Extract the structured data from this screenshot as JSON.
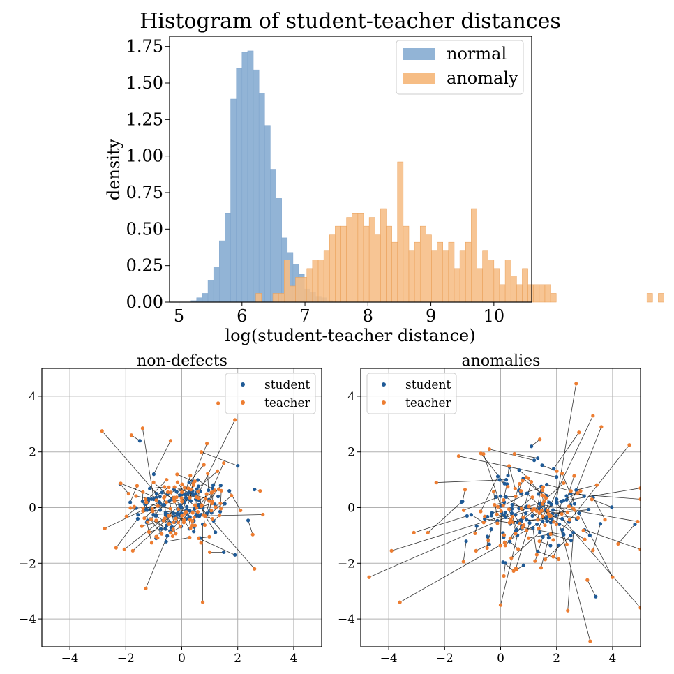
{
  "chart_data": [
    {
      "type": "histogram",
      "title": "Histogram of student-teacher distances",
      "xlabel": "log(student-teacher distance)",
      "ylabel": "density",
      "xlim": [
        4.85,
        10.6
      ],
      "ylim": [
        0,
        1.82
      ],
      "xticks": [
        "5",
        "6",
        "7",
        "8",
        "9",
        "10"
      ],
      "yticks": [
        "0.00",
        "0.25",
        "0.50",
        "0.75",
        "1.00",
        "1.25",
        "1.50",
        "1.75"
      ],
      "legend_position": "top-right",
      "series": [
        {
          "name": "normal",
          "color": "#92b4d6",
          "edge": "#7ea4cc",
          "x_start": 5.1,
          "bin_width": 0.09,
          "values": [
            0.0,
            0.01,
            0.03,
            0.06,
            0.15,
            0.24,
            0.42,
            0.61,
            1.39,
            1.6,
            1.71,
            1.72,
            1.59,
            1.43,
            1.21,
            0.91,
            0.71,
            0.44,
            0.34,
            0.26,
            0.19,
            0.09,
            0.07,
            0.04,
            0.03,
            0.01
          ]
        },
        {
          "name": "anomaly",
          "color": "#f6bd85",
          "edge": "#e99e55",
          "x_start": 6.22,
          "bin_width": 0.09,
          "values": [
            0.06,
            0.0,
            0.0,
            0.06,
            0.06,
            0.29,
            0.11,
            0.17,
            0.17,
            0.23,
            0.29,
            0.29,
            0.35,
            0.46,
            0.52,
            0.52,
            0.58,
            0.61,
            0.61,
            0.52,
            0.58,
            0.46,
            0.64,
            0.52,
            0.41,
            0.96,
            0.52,
            0.35,
            0.41,
            0.52,
            0.46,
            0.35,
            0.41,
            0.35,
            0.41,
            0.23,
            0.35,
            0.41,
            0.64,
            0.23,
            0.35,
            0.29,
            0.23,
            0.12,
            0.29,
            0.18,
            0.12,
            0.23,
            0.12,
            0.12,
            0.12,
            0.12,
            0.06,
            0.0,
            0.0,
            0.0,
            0.0,
            0.0,
            0.0,
            0.0,
            0.0,
            0.0,
            0.0,
            0.0,
            0.0,
            0.0,
            0.0,
            0.0,
            0.0,
            0.06,
            0.0,
            0.06
          ]
        }
      ]
    },
    {
      "type": "scatter",
      "title": "non-defects",
      "xlim": [
        -5,
        5
      ],
      "ylim": [
        -5,
        5
      ],
      "xticks": [
        "−4",
        "−2",
        "0",
        "2",
        "4"
      ],
      "yticks": [
        "4",
        "2",
        "0",
        "−2",
        "−4"
      ],
      "grid": true,
      "legend_position": "top-right",
      "series": [
        {
          "name": "student",
          "color": "#1f5a96"
        },
        {
          "name": "teacher",
          "color": "#ed7d31"
        }
      ],
      "pairs": [
        {
          "student": [
            1.3,
            0.4
          ],
          "teacher": [
            1.3,
            3.75
          ]
        },
        {
          "student": [
            0.5,
            0.3
          ],
          "teacher": [
            1.9,
            3.15
          ]
        },
        {
          "student": [
            -1.5,
            2.4
          ],
          "teacher": [
            -1.8,
            2.6
          ]
        },
        {
          "student": [
            -0.9,
            0.5
          ],
          "teacher": [
            -2.85,
            2.75
          ]
        },
        {
          "student": [
            -1.0,
            0.3
          ],
          "teacher": [
            -1.4,
            2.85
          ]
        },
        {
          "student": [
            0.2,
            0.5
          ],
          "teacher": [
            0.9,
            2.3
          ]
        },
        {
          "student": [
            2.0,
            1.5
          ],
          "teacher": [
            0.7,
            2.0
          ]
        },
        {
          "student": [
            0.6,
            0.1
          ],
          "teacher": [
            2.6,
            -2.2
          ]
        },
        {
          "student": [
            0.75,
            -0.6
          ],
          "teacher": [
            0.75,
            -3.4
          ]
        },
        {
          "student": [
            -0.8,
            0.2
          ],
          "teacher": [
            -2.75,
            -0.75
          ]
        },
        {
          "student": [
            2.6,
            0.65
          ],
          "teacher": [
            2.8,
            0.6
          ]
        },
        {
          "student": [
            1.5,
            -1.6
          ],
          "teacher": [
            1.0,
            -1.6
          ]
        },
        {
          "student": [
            0.5,
            -0.3
          ],
          "teacher": [
            2.9,
            -0.25
          ]
        },
        {
          "student": [
            1.9,
            -1.7
          ],
          "teacher": [
            0.6,
            -1.1
          ]
        },
        {
          "student": [
            -2.2,
            0.85
          ],
          "teacher": [
            -1.9,
            0.5
          ]
        },
        {
          "student": [
            -1.0,
            1.2
          ],
          "teacher": [
            -0.4,
            2.4
          ]
        },
        {
          "student": [
            0.1,
            0.2
          ],
          "teacher": [
            -2.05,
            -1.5
          ]
        },
        {
          "student": [
            1.7,
            0.6
          ],
          "teacher": [
            2.1,
            -0.1
          ]
        },
        {
          "student": [
            -0.3,
            -0.2
          ],
          "teacher": [
            -1.75,
            -1.55
          ]
        },
        {
          "student": [
            1.1,
            0.7
          ],
          "teacher": [
            1.5,
            1.6
          ]
        }
      ],
      "cloud_seed": 12345,
      "cloud_count": 120,
      "cloud_spread": 0.9
    },
    {
      "type": "scatter",
      "title": "anomalies",
      "xlim": [
        -5,
        5
      ],
      "ylim": [
        -5,
        5
      ],
      "xticks": [
        "−4",
        "−2",
        "0",
        "2",
        "4"
      ],
      "yticks": [
        "4",
        "2",
        "0",
        "−2",
        "−4"
      ],
      "grid": true,
      "legend_position": "top-left",
      "series": [
        {
          "name": "student",
          "color": "#1f5a96"
        },
        {
          "name": "teacher",
          "color": "#ed7d31"
        }
      ],
      "pairs": [
        {
          "student": [
            2.0,
            0.3
          ],
          "teacher": [
            2.7,
            4.45
          ]
        },
        {
          "student": [
            1.5,
            -0.5
          ],
          "teacher": [
            3.3,
            3.3
          ]
        },
        {
          "student": [
            2.5,
            0.1
          ],
          "teacher": [
            3.6,
            2.9
          ]
        },
        {
          "student": [
            2.2,
            -0.8
          ],
          "teacher": [
            4.6,
            2.25
          ]
        },
        {
          "student": [
            1.0,
            0.0
          ],
          "teacher": [
            -4.7,
            -2.5
          ]
        },
        {
          "student": [
            0.4,
            -0.2
          ],
          "teacher": [
            -3.9,
            -1.55
          ]
        },
        {
          "student": [
            1.3,
            -0.6
          ],
          "teacher": [
            -3.6,
            -3.4
          ]
        },
        {
          "student": [
            2.1,
            -0.6
          ],
          "teacher": [
            3.2,
            -4.8
          ]
        },
        {
          "student": [
            2.6,
            -0.9
          ],
          "teacher": [
            2.4,
            -3.7
          ]
        },
        {
          "student": [
            2.0,
            0.2
          ],
          "teacher": [
            5.0,
            0.7
          ]
        },
        {
          "student": [
            3.0,
            -0.8
          ],
          "teacher": [
            5.0,
            -1.5
          ]
        },
        {
          "student": [
            2.2,
            -0.4
          ],
          "teacher": [
            5.0,
            -3.6
          ]
        },
        {
          "student": [
            2.5,
            0.5
          ],
          "teacher": [
            5.0,
            0.3
          ]
        },
        {
          "student": [
            1.5,
            0.1
          ],
          "teacher": [
            4.9,
            -0.5
          ]
        },
        {
          "student": [
            -1.2,
            -0.3
          ],
          "teacher": [
            -3.1,
            -0.9
          ]
        },
        {
          "student": [
            0.2,
            1.0
          ],
          "teacher": [
            -2.3,
            0.9
          ]
        },
        {
          "student": [
            1.2,
            1.7
          ],
          "teacher": [
            -0.4,
            2.1
          ]
        },
        {
          "student": [
            1.1,
            2.2
          ],
          "teacher": [
            1.4,
            2.45
          ]
        },
        {
          "student": [
            0.6,
            -1.0
          ],
          "teacher": [
            0.0,
            -3.5
          ]
        },
        {
          "student": [
            3.4,
            -3.2
          ],
          "teacher": [
            3.1,
            -2.6
          ]
        },
        {
          "student": [
            4.8,
            -0.6
          ],
          "teacher": [
            4.2,
            -1.3
          ]
        },
        {
          "student": [
            2.8,
            -0.2
          ],
          "teacher": [
            4.0,
            -2.5
          ]
        },
        {
          "student": [
            -1.4,
            0.2
          ],
          "teacher": [
            -2.6,
            -0.9
          ]
        },
        {
          "student": [
            1.9,
            1.4
          ],
          "teacher": [
            2.8,
            2.7
          ]
        },
        {
          "student": [
            2.0,
            1.1
          ],
          "teacher": [
            -1.5,
            1.85
          ]
        }
      ],
      "cloud_seed": 98765,
      "cloud_count": 110,
      "cloud_spread": 1.15,
      "cloud_center": [
        1.0,
        -0.2
      ]
    }
  ]
}
